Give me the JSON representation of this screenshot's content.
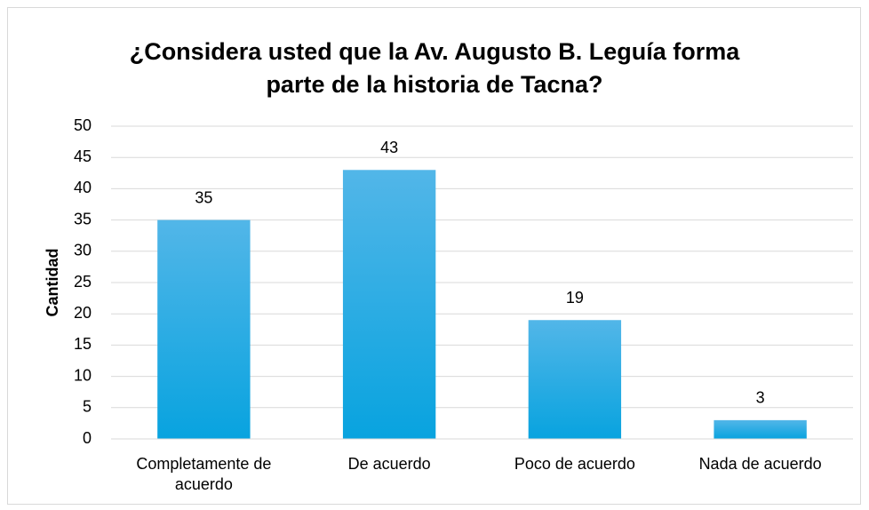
{
  "chart_data": {
    "type": "bar",
    "title": "¿Considera usted que la Av. Augusto B. Leguía forma parte de la historia de Tacna?",
    "y_label": "Cantidad",
    "categories": [
      "Completamente de acuerdo",
      "De acuerdo",
      "Poco de acuerdo",
      "Nada de acuerdo"
    ],
    "values": [
      35,
      43,
      19,
      3
    ],
    "color": "#1aabe4",
    "ylim": [
      0,
      50
    ],
    "yticks": [
      0,
      5,
      10,
      15,
      20,
      25,
      30,
      35,
      40,
      45,
      50
    ],
    "grid": true
  }
}
